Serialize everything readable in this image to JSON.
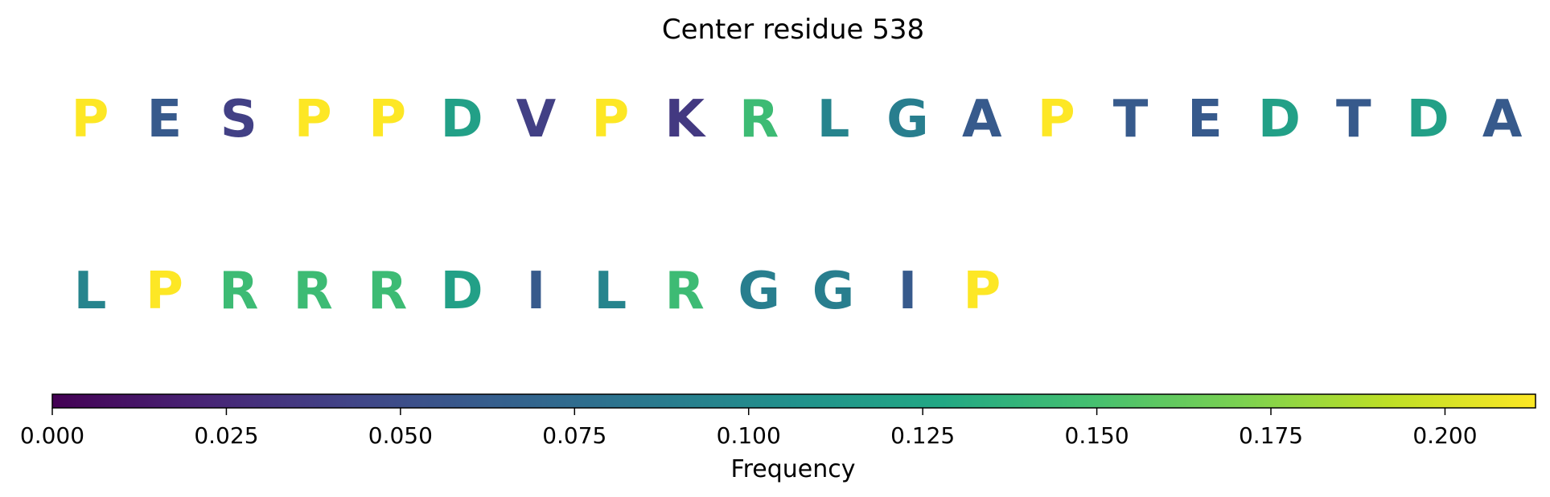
{
  "chart_data": {
    "type": "heatmap",
    "title": "Center residue 538",
    "colormap": "viridis",
    "rows": [
      {
        "residues": [
          {
            "letter": "P",
            "frequency": 0.213
          },
          {
            "letter": "E",
            "frequency": 0.06
          },
          {
            "letter": "S",
            "frequency": 0.04
          },
          {
            "letter": "P",
            "frequency": 0.213
          },
          {
            "letter": "P",
            "frequency": 0.213
          },
          {
            "letter": "D",
            "frequency": 0.12
          },
          {
            "letter": "V",
            "frequency": 0.04
          },
          {
            "letter": "P",
            "frequency": 0.213
          },
          {
            "letter": "K",
            "frequency": 0.035
          },
          {
            "letter": "R",
            "frequency": 0.145
          },
          {
            "letter": "L",
            "frequency": 0.095
          },
          {
            "letter": "G",
            "frequency": 0.09
          },
          {
            "letter": "A",
            "frequency": 0.06
          },
          {
            "letter": "P",
            "frequency": 0.213
          },
          {
            "letter": "T",
            "frequency": 0.06
          },
          {
            "letter": "E",
            "frequency": 0.06
          },
          {
            "letter": "D",
            "frequency": 0.12
          },
          {
            "letter": "T",
            "frequency": 0.06
          },
          {
            "letter": "D",
            "frequency": 0.12
          },
          {
            "letter": "A",
            "frequency": 0.06
          }
        ]
      },
      {
        "residues": [
          {
            "letter": "L",
            "frequency": 0.095
          },
          {
            "letter": "P",
            "frequency": 0.213
          },
          {
            "letter": "R",
            "frequency": 0.145
          },
          {
            "letter": "R",
            "frequency": 0.145
          },
          {
            "letter": "R",
            "frequency": 0.145
          },
          {
            "letter": "D",
            "frequency": 0.12
          },
          {
            "letter": "I",
            "frequency": 0.06
          },
          {
            "letter": "L",
            "frequency": 0.095
          },
          {
            "letter": "R",
            "frequency": 0.145
          },
          {
            "letter": "G",
            "frequency": 0.09
          },
          {
            "letter": "G",
            "frequency": 0.09
          },
          {
            "letter": "I",
            "frequency": 0.06
          },
          {
            "letter": "P",
            "frequency": 0.213
          }
        ]
      }
    ],
    "colorbar": {
      "label": "Frequency",
      "range": [
        0,
        0.213
      ],
      "ticks": [
        0.0,
        0.025,
        0.05,
        0.075,
        0.1,
        0.125,
        0.15,
        0.175,
        0.2
      ],
      "tick_labels": [
        "0.000",
        "0.025",
        "0.050",
        "0.075",
        "0.100",
        "0.125",
        "0.150",
        "0.175",
        "0.200"
      ]
    }
  }
}
